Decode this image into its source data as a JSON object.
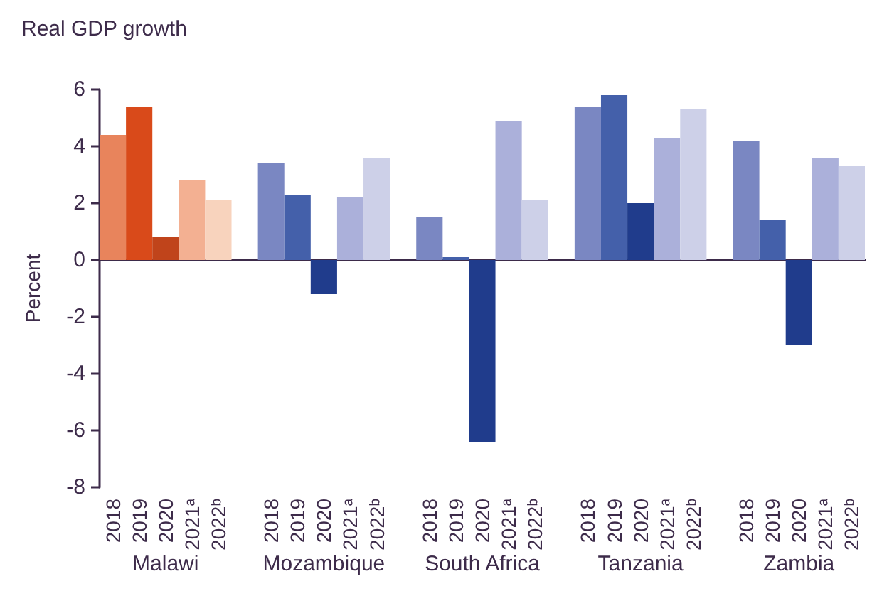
{
  "chart_data": {
    "type": "bar",
    "title": "Real GDP growth",
    "ylabel": "Percent",
    "categories": [
      "2018",
      "2019",
      "2020",
      "2021ᵃ",
      "2022ᵇ",
      null,
      "2018",
      "2019",
      "2020",
      "2021ᵃ",
      "2022ᵇ",
      null,
      "2018",
      "2019",
      "2020",
      "2021ᵃ",
      "2022ᵇ",
      null,
      "2018",
      "2019",
      "2020",
      "2021ᵃ",
      "2022ᵇ",
      null,
      "2018",
      "2019",
      "2020",
      "2021ᵃ",
      "2022ᵇ"
    ],
    "values": [
      4.4,
      5.4,
      0.8,
      2.8,
      2.1,
      null,
      3.4,
      2.3,
      -1.2,
      2.2,
      3.6,
      null,
      1.5,
      0.1,
      -6.4,
      4.9,
      2.1,
      null,
      5.4,
      5.8,
      2.0,
      4.3,
      5.3,
      null,
      4.2,
      1.4,
      -3.0,
      3.6,
      3.3
    ],
    "colors": [
      "#e8845c",
      "#d94a1a",
      "#c0441b",
      "#f3b092",
      "#f8d3bd",
      null,
      "#7a87c2",
      "#4460aa",
      "#203c8c",
      "#abb0da",
      "#cdd0e8",
      null,
      "#7a87c2",
      "#4460aa",
      "#203c8c",
      "#abb0da",
      "#cdd0e8",
      null,
      "#7a87c2",
      "#4460aa",
      "#203c8c",
      "#abb0da",
      "#cdd0e8",
      null,
      "#7a87c2",
      "#4460aa",
      "#203c8c",
      "#abb0da",
      "#cdd0e8"
    ],
    "annotations": [
      "Malawi",
      "Mozambique",
      "South Africa",
      "Tanzania",
      "Zambia"
    ],
    "ylim": [
      -8,
      6
    ],
    "yticks": [
      -8,
      -6,
      -4,
      -2,
      0,
      2,
      4,
      6
    ]
  }
}
